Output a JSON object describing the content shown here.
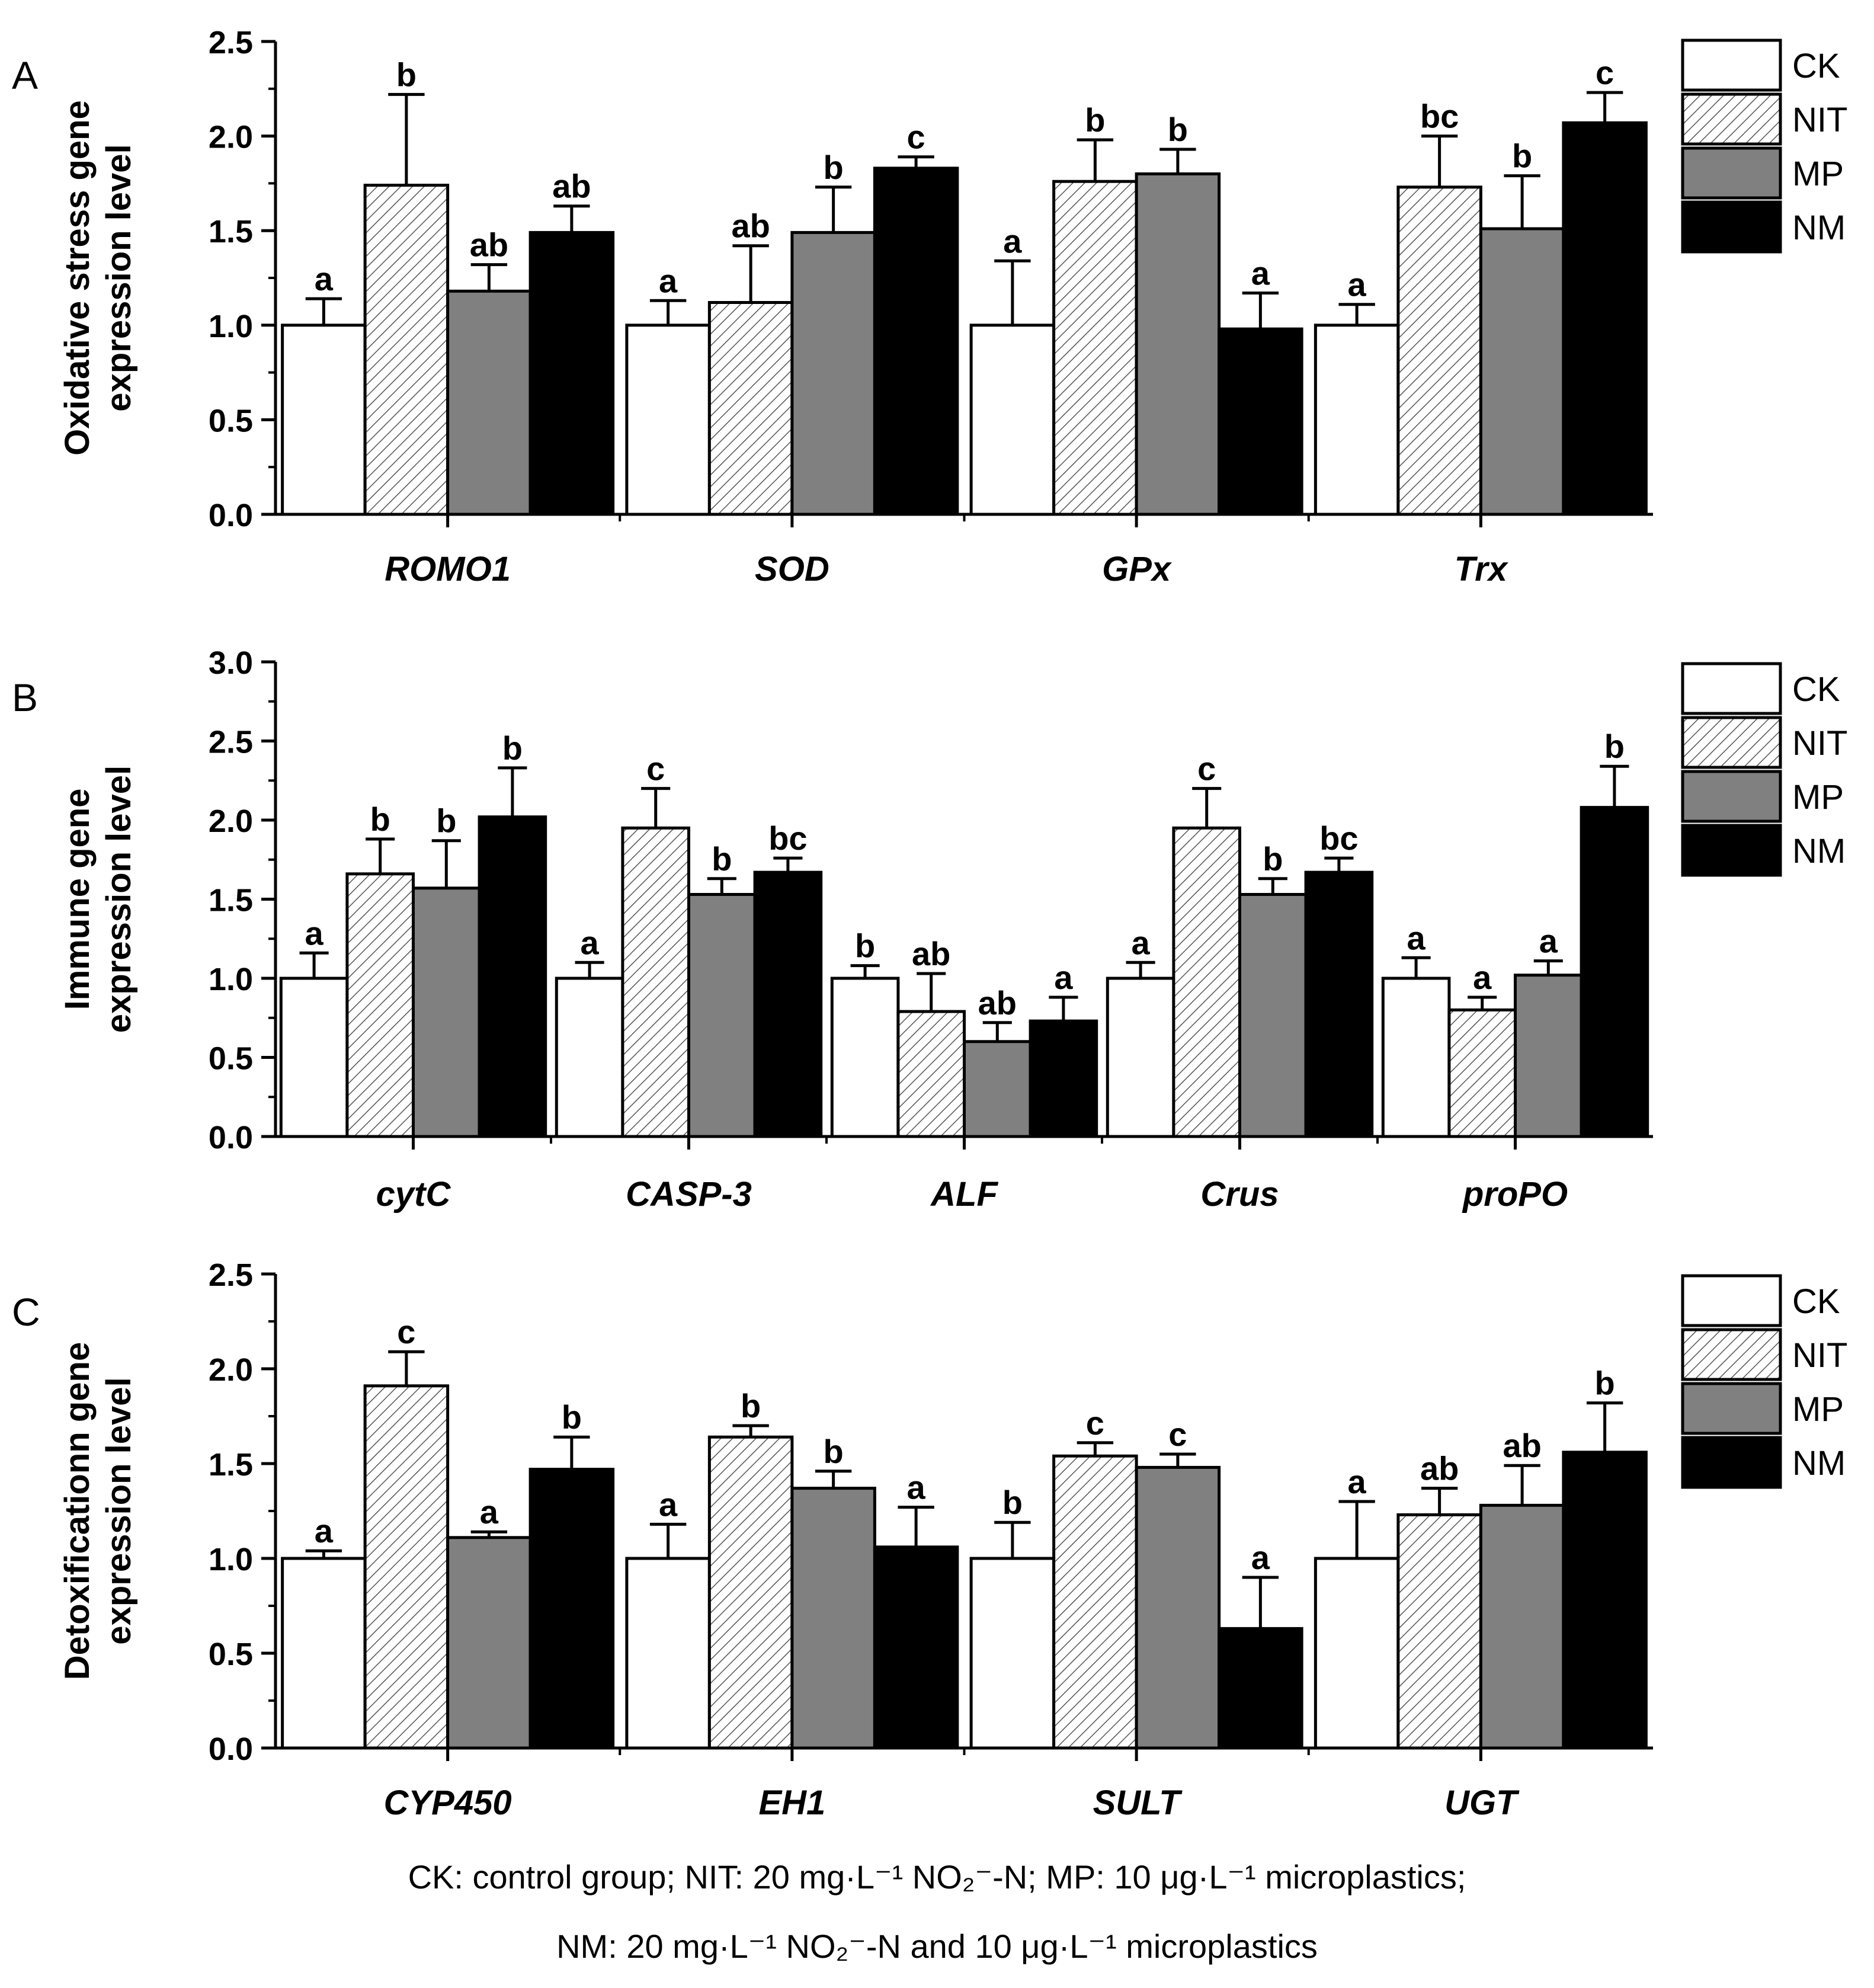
{
  "colors": {
    "CK": "#ffffff",
    "NIT": "hatched",
    "MP": "#808080",
    "NM": "#000000",
    "axis": "#000000"
  },
  "chart_data": [
    {
      "panel": "A",
      "type": "bar",
      "ylabel": [
        "Oxidative stress gene",
        "expression level"
      ],
      "ylim": [
        0,
        2.5
      ],
      "yticks": [
        "0.0",
        "0.5",
        "1.0",
        "1.5",
        "2.0",
        "2.5"
      ],
      "categories": [
        "ROMO1",
        "SOD",
        "GPx",
        "Trx"
      ],
      "legend": [
        "CK",
        "NIT",
        "MP",
        "NM"
      ],
      "legend_position": "right",
      "series": [
        {
          "name": "CK",
          "values": [
            1.0,
            1.0,
            1.0,
            1.0
          ],
          "errors": [
            0.14,
            0.13,
            0.34,
            0.11
          ],
          "letters": [
            "a",
            "a",
            "a",
            "a"
          ]
        },
        {
          "name": "NIT",
          "values": [
            1.74,
            1.12,
            1.76,
            1.73
          ],
          "errors": [
            0.48,
            0.3,
            0.22,
            0.27
          ],
          "letters": [
            "b",
            "ab",
            "b",
            "bc"
          ]
        },
        {
          "name": "MP",
          "values": [
            1.18,
            1.49,
            1.8,
            1.51
          ],
          "errors": [
            0.14,
            0.24,
            0.13,
            0.28
          ],
          "letters": [
            "ab",
            "b",
            "b",
            "b"
          ]
        },
        {
          "name": "NM",
          "values": [
            1.49,
            1.83,
            0.98,
            2.07
          ],
          "errors": [
            0.14,
            0.06,
            0.19,
            0.16
          ],
          "letters": [
            "ab",
            "c",
            "a",
            "c"
          ]
        }
      ]
    },
    {
      "panel": "B",
      "type": "bar",
      "ylabel": [
        "Immune gene",
        "expression level"
      ],
      "ylim": [
        0,
        3.0
      ],
      "yticks": [
        "0.0",
        "0.5",
        "1.0",
        "1.5",
        "2.0",
        "2.5",
        "3.0"
      ],
      "categories": [
        "cytC",
        "CASP-3",
        "ALF",
        "Crus",
        "proPO"
      ],
      "legend": [
        "CK",
        "NIT",
        "MP",
        "NM"
      ],
      "legend_position": "right",
      "series": [
        {
          "name": "CK",
          "values": [
            1.0,
            1.0,
            1.0,
            1.0,
            1.0
          ],
          "errors": [
            0.16,
            0.1,
            0.08,
            0.1,
            0.13
          ],
          "letters": [
            "a",
            "a",
            "b",
            "a",
            "a"
          ]
        },
        {
          "name": "NIT",
          "values": [
            1.66,
            1.95,
            0.79,
            1.95,
            0.8
          ],
          "errors": [
            0.22,
            0.25,
            0.24,
            0.25,
            0.08
          ],
          "letters": [
            "b",
            "c",
            "ab",
            "c",
            "a"
          ]
        },
        {
          "name": "MP",
          "values": [
            1.57,
            1.53,
            0.6,
            1.53,
            1.02
          ],
          "errors": [
            0.3,
            0.1,
            0.12,
            0.1,
            0.09
          ],
          "letters": [
            "b",
            "b",
            "ab",
            "b",
            "a"
          ]
        },
        {
          "name": "NM",
          "values": [
            2.02,
            1.67,
            0.73,
            1.67,
            2.08
          ],
          "errors": [
            0.31,
            0.09,
            0.15,
            0.09,
            0.26
          ],
          "letters": [
            "b",
            "bc",
            "a",
            "bc",
            "b"
          ]
        }
      ]
    },
    {
      "panel": "C",
      "type": "bar",
      "ylabel": [
        "Detoxificationn gene",
        "expression level"
      ],
      "ylim": [
        0,
        2.5
      ],
      "yticks": [
        "0.0",
        "0.5",
        "1.0",
        "1.5",
        "2.0",
        "2.5"
      ],
      "categories": [
        "CYP450",
        "EH1",
        "SULT",
        "UGT"
      ],
      "legend": [
        "CK",
        "NIT",
        "MP",
        "NM"
      ],
      "legend_position": "right",
      "series": [
        {
          "name": "CK",
          "values": [
            1.0,
            1.0,
            1.0,
            1.0
          ],
          "errors": [
            0.04,
            0.18,
            0.19,
            0.3
          ],
          "letters": [
            "a",
            "a",
            "b",
            "a"
          ]
        },
        {
          "name": "NIT",
          "values": [
            1.91,
            1.64,
            1.54,
            1.23
          ],
          "errors": [
            0.18,
            0.06,
            0.07,
            0.14
          ],
          "letters": [
            "c",
            "b",
            "c",
            "ab"
          ]
        },
        {
          "name": "MP",
          "values": [
            1.11,
            1.37,
            1.48,
            1.28
          ],
          "errors": [
            0.03,
            0.09,
            0.07,
            0.21
          ],
          "letters": [
            "a",
            "b",
            "c",
            "ab"
          ]
        },
        {
          "name": "NM",
          "values": [
            1.47,
            1.06,
            0.63,
            1.56
          ],
          "errors": [
            0.17,
            0.21,
            0.27,
            0.26
          ],
          "letters": [
            "b",
            "a",
            "a",
            "b"
          ]
        }
      ]
    }
  ],
  "caption": {
    "line1": "CK: control group; NIT: 20 mg·L⁻¹ NO₂⁻-N; MP: 10 μg·L⁻¹ microplastics;",
    "line2": "NM: 20 mg·L⁻¹ NO₂⁻-N and 10 μg·L⁻¹ microplastics"
  }
}
